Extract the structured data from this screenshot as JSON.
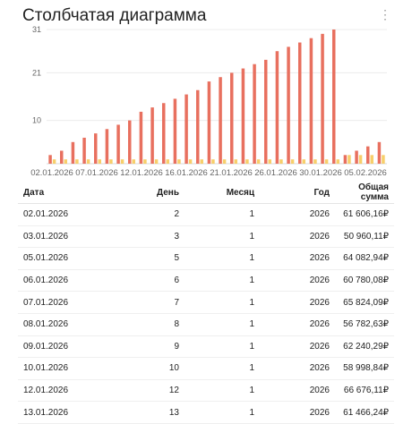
{
  "header": {
    "title": "Столбчатая диаграмма",
    "menu_icon": "more-vertical-icon"
  },
  "chart_data": {
    "type": "bar",
    "y_ticks": [
      "31",
      "21",
      "10"
    ],
    "ylim": [
      0,
      31
    ],
    "colors": {
      "red": "#e8705f",
      "yellow": "#f7cf6b"
    },
    "x_tick_labels": [
      "02.01.2026",
      "07.01.2026",
      "12.01.2026",
      "16.01.2026",
      "21.01.2026",
      "26.01.2026",
      "30.01.2026",
      "05.02.2026"
    ],
    "categories": [
      "02.01",
      "03.01",
      "05.01",
      "06.01",
      "07.01",
      "08.01",
      "09.01",
      "10.01",
      "12.01",
      "13.01",
      "14.01",
      "15.01",
      "16.01",
      "17.01",
      "19.01",
      "20.01",
      "21.01",
      "22.01",
      "23.01",
      "24.01",
      "26.01",
      "27.01",
      "28.01",
      "29.01",
      "30.01",
      "31.01",
      "02.02",
      "03.02",
      "04.02",
      "05.02"
    ],
    "series": [
      {
        "values": [
          2,
          3,
          5,
          6,
          7,
          8,
          9,
          10,
          12,
          13,
          14,
          15,
          16,
          17,
          19,
          20,
          21,
          22,
          23,
          24,
          26,
          27,
          28,
          29,
          30,
          31,
          2,
          3,
          4,
          5
        ]
      },
      {
        "values": [
          1,
          1,
          1,
          1,
          1,
          1,
          1,
          1,
          1,
          1,
          1,
          1,
          1,
          1,
          1,
          1,
          1,
          1,
          1,
          1,
          1,
          1,
          1,
          1,
          1,
          1,
          2,
          2,
          2,
          2
        ]
      }
    ]
  },
  "table": {
    "columns": [
      "Дата",
      "День",
      "Месяц",
      "Год",
      "Общая сумма"
    ],
    "rows": [
      [
        "02.01.2026",
        "2",
        "1",
        "2026",
        "61 606,16₽"
      ],
      [
        "03.01.2026",
        "3",
        "1",
        "2026",
        "50 960,11₽"
      ],
      [
        "05.01.2026",
        "5",
        "1",
        "2026",
        "64 082,94₽"
      ],
      [
        "06.01.2026",
        "6",
        "1",
        "2026",
        "60 780,08₽"
      ],
      [
        "07.01.2026",
        "7",
        "1",
        "2026",
        "65 824,09₽"
      ],
      [
        "08.01.2026",
        "8",
        "1",
        "2026",
        "56 782,63₽"
      ],
      [
        "09.01.2026",
        "9",
        "1",
        "2026",
        "62 240,29₽"
      ],
      [
        "10.01.2026",
        "10",
        "1",
        "2026",
        "58 998,84₽"
      ],
      [
        "12.01.2026",
        "12",
        "1",
        "2026",
        "66 676,11₽"
      ],
      [
        "13.01.2026",
        "13",
        "1",
        "2026",
        "61 466,24₽"
      ]
    ]
  }
}
